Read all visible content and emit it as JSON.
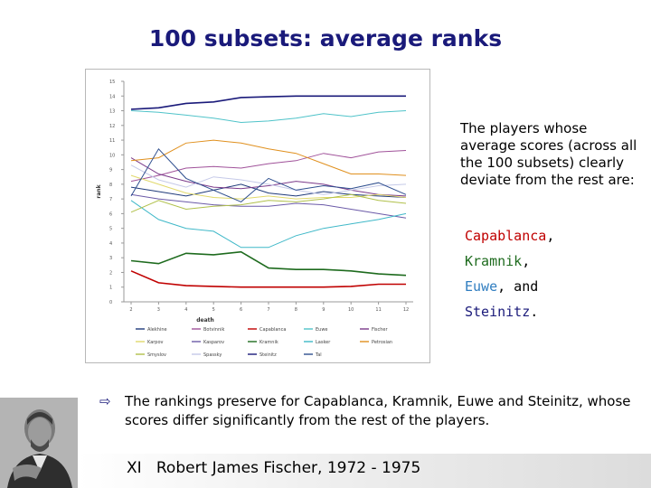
{
  "slide": {
    "title": "100 subsets: average ranks",
    "side_intro": "The players whose average scores (across all the 100 subsets) clearly deviate from the rest are:",
    "names": [
      {
        "name": "Capablanca",
        "suffix": ",",
        "color": "#c00000"
      },
      {
        "name": "Kramnik",
        "suffix": ",",
        "color": "#1e6b1e"
      },
      {
        "name": "Euwe",
        "suffix": ", and",
        "color": "#2f7dc0"
      },
      {
        "name": "Steinitz",
        "suffix": ".",
        "color": "#1a1a7a"
      }
    ],
    "bullet": "The rankings preserve for Capablanca, Kramnik, Euwe and Steinitz, whose scores differ significantly from the rest of the players.",
    "footer": "XI   Robert James Fischer, 1972 - 1975"
  },
  "chart_data": {
    "type": "line",
    "title": "",
    "xlabel": "death",
    "ylabel": "rank",
    "categories": [
      "2",
      "3",
      "4",
      "5",
      "6",
      "7",
      "8",
      "9",
      "10",
      "11",
      "12"
    ],
    "ylim": [
      0,
      15
    ],
    "yticks": [
      "0",
      "1",
      "2",
      "3",
      "4",
      "5",
      "6",
      "7",
      "8",
      "9",
      "10",
      "11",
      "12",
      "13",
      "14",
      "15"
    ],
    "grid": false,
    "legend_position": "bottom",
    "series": [
      {
        "name": "Alekhine",
        "color": "#1f3a7a",
        "values": [
          7.8,
          7.5,
          7.2,
          7.6,
          8.0,
          7.4,
          7.2,
          7.5,
          7.3,
          7.2,
          7.1
        ]
      },
      {
        "name": "Botvinnik",
        "color": "#a0529a",
        "values": [
          8.2,
          8.6,
          9.1,
          9.2,
          9.1,
          9.4,
          9.6,
          10.1,
          9.8,
          10.2,
          10.3
        ]
      },
      {
        "name": "Capablanca",
        "color": "#c00000",
        "values": [
          2.1,
          1.3,
          1.1,
          1.05,
          1.0,
          1.0,
          1.0,
          1.0,
          1.05,
          1.2,
          1.2
        ]
      },
      {
        "name": "Euwe",
        "color": "#4fc3c9",
        "values": [
          13.0,
          12.9,
          12.7,
          12.5,
          12.2,
          12.3,
          12.5,
          12.8,
          12.6,
          12.9,
          13.0
        ]
      },
      {
        "name": "Fischer",
        "color": "#7b3a8a",
        "values": [
          9.8,
          8.7,
          8.2,
          7.8,
          7.7,
          7.9,
          8.2,
          8.0,
          7.6,
          7.3,
          7.2
        ]
      },
      {
        "name": "Karpov",
        "color": "#e1d96b",
        "values": [
          8.6,
          8.0,
          7.4,
          7.1,
          7.0,
          7.2,
          7.0,
          7.1,
          7.1,
          7.3,
          7.1
        ]
      },
      {
        "name": "Kasparov",
        "color": "#6b5aa8",
        "values": [
          7.3,
          7.0,
          6.8,
          6.6,
          6.5,
          6.5,
          6.7,
          6.6,
          6.3,
          6.0,
          5.7
        ]
      },
      {
        "name": "Kramnik",
        "color": "#1e6b1e",
        "values": [
          2.8,
          2.6,
          3.3,
          3.2,
          3.4,
          2.3,
          2.2,
          2.2,
          2.1,
          1.9,
          1.8
        ]
      },
      {
        "name": "Lasker",
        "color": "#3fb8c8",
        "values": [
          6.9,
          5.6,
          5.0,
          4.8,
          3.7,
          3.7,
          4.5,
          5.0,
          5.3,
          5.6,
          6.0
        ]
      },
      {
        "name": "Petrosian",
        "color": "#e0901e",
        "values": [
          9.6,
          9.8,
          10.8,
          11.0,
          10.8,
          10.4,
          10.1,
          9.4,
          8.7,
          8.7,
          8.6
        ]
      },
      {
        "name": "Smyslov",
        "color": "#b0c04a",
        "values": [
          6.1,
          6.9,
          6.3,
          6.5,
          6.6,
          6.9,
          6.8,
          7.0,
          7.3,
          6.9,
          6.7
        ]
      },
      {
        "name": "Spassky",
        "color": "#c5c9e8",
        "values": [
          9.3,
          8.3,
          7.8,
          8.5,
          8.3,
          8.0,
          7.6,
          7.3,
          7.6,
          7.9,
          8.0
        ]
      },
      {
        "name": "Steinitz",
        "color": "#1a1a7a",
        "values": [
          13.1,
          13.2,
          13.5,
          13.6,
          13.9,
          13.95,
          14.0,
          14.0,
          14.0,
          14.0,
          14.0
        ]
      },
      {
        "name": "Tal",
        "color": "#2f4f8f",
        "values": [
          7.2,
          10.4,
          8.4,
          7.6,
          6.8,
          8.4,
          7.6,
          7.9,
          7.7,
          8.1,
          7.3
        ]
      }
    ]
  }
}
